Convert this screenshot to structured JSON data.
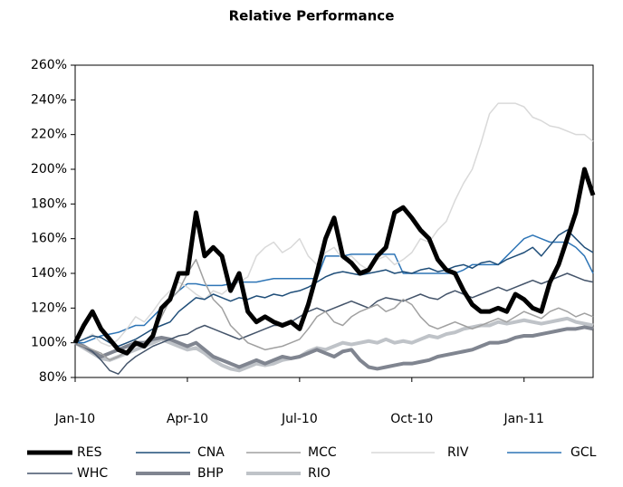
{
  "chart_data": {
    "type": "line",
    "title": "Relative Performance",
    "categories": [
      "Jan-10",
      null,
      null,
      null,
      null,
      null,
      null,
      null,
      null,
      null,
      null,
      null,
      null,
      "Apr-10",
      null,
      null,
      null,
      null,
      null,
      null,
      null,
      null,
      null,
      null,
      null,
      null,
      "Jul-10",
      null,
      null,
      null,
      null,
      null,
      null,
      null,
      null,
      null,
      null,
      null,
      null,
      "Oct-10",
      null,
      null,
      null,
      null,
      null,
      null,
      null,
      null,
      null,
      null,
      null,
      null,
      "Jan-11",
      null,
      null,
      null,
      null,
      null,
      null,
      null,
      null
    ],
    "ylim": [
      80,
      260
    ],
    "yticks": [
      {
        "value": 80,
        "label": "80%"
      },
      {
        "value": 100,
        "label": "100%"
      },
      {
        "value": 120,
        "label": "120%"
      },
      {
        "value": 140,
        "label": "140%"
      },
      {
        "value": 160,
        "label": "160%"
      },
      {
        "value": 180,
        "label": "180%"
      },
      {
        "value": 200,
        "label": "200%"
      },
      {
        "value": 220,
        "label": "220%"
      },
      {
        "value": 240,
        "label": "240%"
      },
      {
        "value": 260,
        "label": "260%"
      }
    ],
    "legend": "bottom",
    "grid": false,
    "series": [
      {
        "name": "RES",
        "color": "#000000",
        "line_width": 5,
        "values": [
          100,
          110,
          118,
          108,
          102,
          96,
          94,
          100,
          98,
          104,
          120,
          125,
          140,
          140,
          175,
          150,
          155,
          150,
          130,
          140,
          118,
          112,
          115,
          112,
          110,
          112,
          108,
          122,
          140,
          160,
          172,
          150,
          146,
          140,
          142,
          150,
          155,
          175,
          178,
          172,
          165,
          160,
          148,
          142,
          140,
          130,
          122,
          118,
          118,
          120,
          118,
          128,
          125,
          120,
          118,
          135,
          145,
          160,
          175,
          200,
          185
        ]
      },
      {
        "name": "CNA",
        "color": "#1f4e79",
        "line_width": 1.5,
        "values": [
          100,
          102,
          104,
          103,
          100,
          98,
          100,
          102,
          105,
          108,
          110,
          112,
          118,
          122,
          126,
          125,
          128,
          126,
          124,
          126,
          125,
          127,
          126,
          128,
          127,
          129,
          130,
          132,
          135,
          138,
          140,
          141,
          140,
          139,
          140,
          141,
          142,
          140,
          141,
          140,
          142,
          143,
          141,
          142,
          144,
          145,
          143,
          146,
          147,
          145,
          148,
          150,
          152,
          155,
          150,
          156,
          162,
          165,
          160,
          155,
          152
        ]
      },
      {
        "name": "MCC",
        "color": "#a0a0a0",
        "line_width": 1.5,
        "values": [
          100,
          98,
          96,
          94,
          90,
          92,
          95,
          98,
          100,
          105,
          115,
          125,
          130,
          140,
          148,
          135,
          125,
          120,
          110,
          105,
          100,
          98,
          96,
          97,
          98,
          100,
          102,
          108,
          115,
          118,
          112,
          110,
          115,
          118,
          120,
          122,
          118,
          120,
          125,
          122,
          115,
          110,
          108,
          110,
          112,
          110,
          108,
          110,
          112,
          114,
          112,
          115,
          118,
          116,
          114,
          118,
          120,
          118,
          115,
          117,
          115
        ]
      },
      {
        "name": "RIV",
        "color": "#d9d9d9",
        "line_width": 1.5,
        "values": [
          100,
          102,
          105,
          100,
          98,
          102,
          108,
          115,
          112,
          118,
          125,
          130,
          135,
          132,
          128,
          125,
          130,
          128,
          132,
          135,
          138,
          150,
          155,
          158,
          152,
          155,
          160,
          150,
          145,
          152,
          155,
          148,
          150,
          145,
          142,
          148,
          150,
          145,
          148,
          152,
          160,
          158,
          165,
          170,
          182,
          192,
          200,
          215,
          232,
          238,
          238,
          238,
          236,
          230,
          228,
          225,
          224,
          222,
          220,
          220,
          216
        ]
      },
      {
        "name": "GCL",
        "color": "#2e75b6",
        "line_width": 1.5,
        "values": [
          100,
          100,
          102,
          104,
          105,
          106,
          108,
          110,
          110,
          115,
          120,
          125,
          130,
          134,
          134,
          133,
          133,
          133,
          134,
          135,
          135,
          135,
          136,
          137,
          137,
          137,
          137,
          137,
          137,
          150,
          150,
          150,
          151,
          151,
          151,
          151,
          151,
          151,
          140,
          140,
          140,
          140,
          140,
          140,
          140,
          142,
          145,
          145,
          145,
          145,
          150,
          155,
          160,
          162,
          160,
          158,
          158,
          158,
          155,
          150,
          140
        ]
      },
      {
        "name": "WHC",
        "color": "#44546a",
        "line_width": 1.5,
        "values": [
          100,
          98,
          95,
          90,
          84,
          82,
          88,
          92,
          95,
          98,
          100,
          102,
          104,
          105,
          108,
          110,
          108,
          106,
          104,
          102,
          104,
          106,
          108,
          110,
          110,
          112,
          115,
          118,
          120,
          118,
          120,
          122,
          124,
          122,
          120,
          124,
          126,
          125,
          124,
          126,
          128,
          126,
          125,
          128,
          130,
          128,
          126,
          128,
          130,
          132,
          130,
          132,
          134,
          136,
          134,
          136,
          138,
          140,
          138,
          136,
          135
        ]
      },
      {
        "name": "BHP",
        "color": "#808590",
        "line_width": 4,
        "values": [
          100,
          98,
          95,
          92,
          94,
          96,
          98,
          100,
          100,
          102,
          103,
          102,
          100,
          98,
          100,
          96,
          92,
          90,
          88,
          86,
          88,
          90,
          88,
          90,
          92,
          91,
          92,
          94,
          96,
          94,
          92,
          95,
          96,
          90,
          86,
          85,
          86,
          87,
          88,
          88,
          89,
          90,
          92,
          93,
          94,
          95,
          96,
          98,
          100,
          100,
          101,
          103,
          104,
          104,
          105,
          106,
          107,
          108,
          108,
          109,
          108
        ]
      },
      {
        "name": "RIO",
        "color": "#bfc3c8",
        "line_width": 4,
        "values": [
          100,
          97,
          94,
          91,
          90,
          92,
          94,
          96,
          98,
          100,
          102,
          100,
          98,
          96,
          97,
          94,
          90,
          87,
          85,
          84,
          86,
          88,
          87,
          88,
          90,
          91,
          92,
          95,
          97,
          96,
          98,
          100,
          99,
          100,
          101,
          100,
          102,
          100,
          101,
          100,
          102,
          104,
          103,
          105,
          106,
          108,
          109,
          110,
          110,
          112,
          111,
          112,
          113,
          112,
          111,
          112,
          113,
          114,
          112,
          111,
          110
        ]
      }
    ]
  }
}
